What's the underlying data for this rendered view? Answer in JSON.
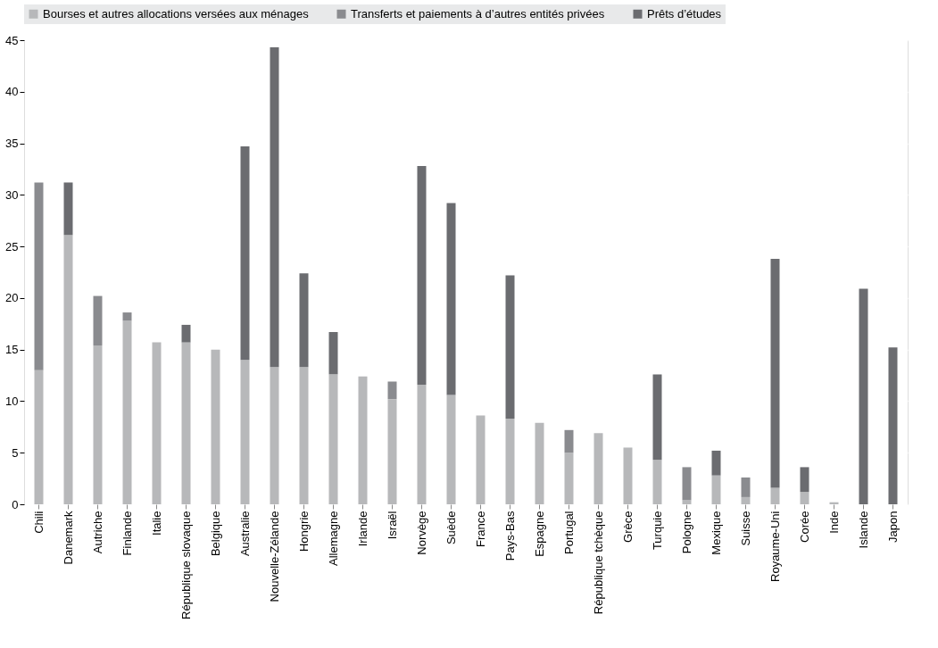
{
  "chart_data": {
    "type": "bar",
    "stacked": true,
    "categories": [
      "Chili",
      "Danemark",
      "Autriche",
      "Finlande",
      "Italie",
      "République slovaque",
      "Belgique",
      "Australie",
      "Nouvelle-Zélande",
      "Hongrie",
      "Allemagne",
      "Irlande",
      "Israël",
      "Norvège",
      "Suède",
      "France",
      "Pays-Bas",
      "Espagne",
      "Portugal",
      "République tchèque",
      "Grèce",
      "Turquie",
      "Pologne",
      "Mexique",
      "Suisse",
      "Royaume-Uni",
      "Corée",
      "Inde",
      "Islande",
      "Japon"
    ],
    "series": [
      {
        "name": "Bourses et autres allocations versées aux ménages",
        "color": "#b7b8ba",
        "values": [
          13.0,
          26.1,
          15.4,
          17.8,
          15.7,
          15.7,
          15.0,
          14.0,
          13.3,
          13.3,
          12.6,
          12.4,
          10.2,
          11.6,
          10.6,
          8.6,
          8.3,
          7.9,
          5.0,
          6.9,
          5.5,
          4.3,
          0.4,
          2.8,
          0.7,
          1.6,
          1.2,
          0.2,
          null,
          null
        ]
      },
      {
        "name": "Transferts et paiements à d’autres entités privées",
        "color": "#8a8b8f",
        "values": [
          18.2,
          null,
          4.8,
          0.8,
          null,
          null,
          null,
          null,
          null,
          null,
          null,
          null,
          1.7,
          null,
          null,
          null,
          null,
          null,
          2.2,
          null,
          null,
          null,
          3.2,
          null,
          1.9,
          null,
          null,
          null,
          null,
          null
        ]
      },
      {
        "name": "Prêts d’études",
        "color": "#6b6c70",
        "values": [
          null,
          5.1,
          null,
          null,
          null,
          1.7,
          null,
          20.7,
          31.0,
          9.1,
          4.1,
          null,
          null,
          21.2,
          18.6,
          null,
          13.9,
          null,
          null,
          null,
          null,
          8.3,
          null,
          2.4,
          null,
          22.2,
          2.4,
          null,
          20.9,
          15.2
        ]
      }
    ],
    "ylim": [
      0,
      45
    ],
    "yticks": [
      0,
      5,
      10,
      15,
      20,
      25,
      30,
      35,
      40,
      45
    ],
    "grid": "y",
    "legend": "top"
  }
}
